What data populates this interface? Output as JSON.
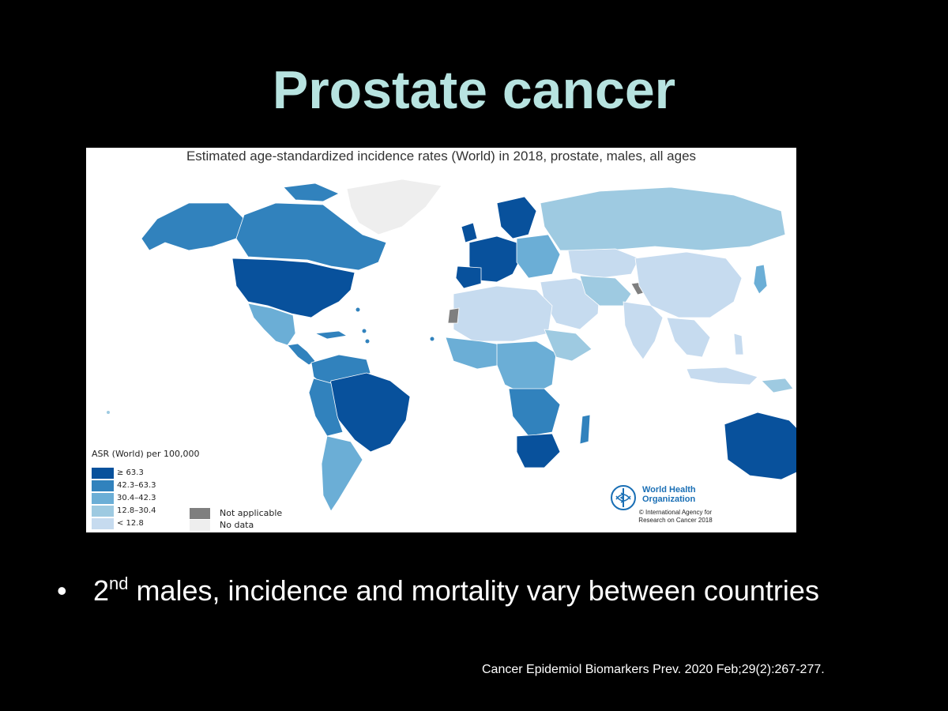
{
  "slide": {
    "title": "Prostate cancer",
    "bullet": {
      "rank": "2",
      "rank_suffix": "nd",
      "text": " males,  incidence and mortality vary between countries"
    },
    "citation": "Cancer Epidemiol Biomarkers Prev. 2020 Feb;29(2):267-277."
  },
  "map": {
    "heading": "Estimated age-standardized incidence rates (World) in 2018, prostate, males, all ages",
    "legend": {
      "title": "ASR (World) per 100,000",
      "bins": [
        {
          "label": "≥ 63.3",
          "color": "#08519c"
        },
        {
          "label": "42.3–63.3",
          "color": "#3182bd"
        },
        {
          "label": "30.4–42.3",
          "color": "#6baed6"
        },
        {
          "label": "12.8–30.4",
          "color": "#9ecae1"
        },
        {
          "label": "< 12.8",
          "color": "#c6dbef"
        }
      ],
      "extras": [
        {
          "label": "Not applicable",
          "color": "#7f7f7f"
        },
        {
          "label": "No data",
          "color": "#eeeeee"
        }
      ]
    },
    "credit": {
      "org_line1": "World Health",
      "org_line2": "Organization",
      "copy_line1": "© International Agency for",
      "copy_line2": "Research on Cancer 2018"
    }
  }
}
